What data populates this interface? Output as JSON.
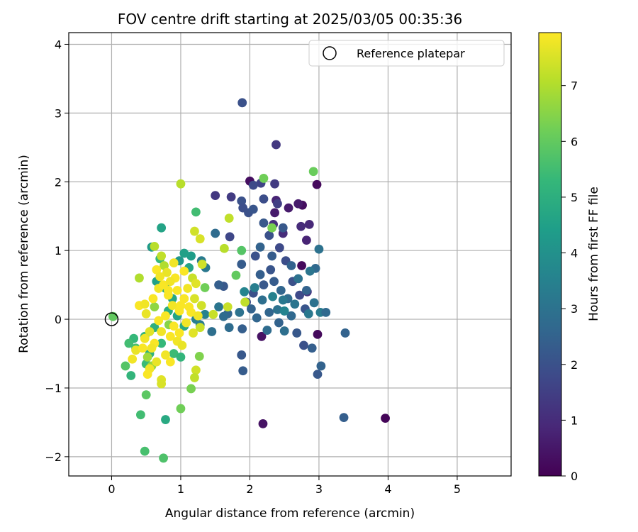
{
  "chart_data": {
    "type": "scatter",
    "title": "FOV centre drift starting at 2025/03/05 00:35:36",
    "xlabel": "Angular distance from reference (arcmin)",
    "ylabel": "Rotation from reference (arcmin)",
    "xlim": [
      -0.62,
      5.78
    ],
    "ylim": [
      -2.28,
      4.17
    ],
    "xticks": [
      0,
      1,
      2,
      3,
      4,
      5
    ],
    "xtick_labels": [
      "0",
      "1",
      "2",
      "3",
      "4",
      "5"
    ],
    "yticks": [
      -2,
      -1,
      0,
      1,
      2,
      3,
      4
    ],
    "ytick_labels": [
      "−2",
      "−1",
      "0",
      "1",
      "2",
      "3",
      "4"
    ],
    "grid": true,
    "legend": {
      "placement": "top-right",
      "entries": [
        {
          "label": "Reference platepar",
          "marker": "open-circle"
        }
      ]
    },
    "reference_point": {
      "x": 0.0,
      "y": 0.0
    },
    "colorbar": {
      "label": "Hours from first FF file",
      "colormap": "viridis",
      "range": [
        0,
        7.95
      ],
      "ticks": [
        0,
        1,
        2,
        3,
        4,
        5,
        6,
        7
      ],
      "tick_labels": [
        "0",
        "1",
        "2",
        "3",
        "4",
        "5",
        "6",
        "7"
      ]
    },
    "colormap_stops": [
      "#440154",
      "#482878",
      "#3e4989",
      "#31688e",
      "#26828e",
      "#1f9e89",
      "#35b779",
      "#6ece58",
      "#b5de2b",
      "#fde725"
    ],
    "points": [
      [
        3.96,
        -1.44,
        0.1
      ],
      [
        2.97,
        1.96,
        0.2
      ],
      [
        2.0,
        2.01,
        0.3
      ],
      [
        2.75,
        0.78,
        0.2
      ],
      [
        2.98,
        -0.22,
        0.2
      ],
      [
        2.17,
        -0.25,
        0.4
      ],
      [
        2.19,
        -1.52,
        0.4
      ],
      [
        2.76,
        1.66,
        0.3
      ],
      [
        2.7,
        1.68,
        0.6
      ],
      [
        2.56,
        1.62,
        0.6
      ],
      [
        2.36,
        1.55,
        0.6
      ],
      [
        2.38,
        1.73,
        0.8
      ],
      [
        2.82,
        1.15,
        0.8
      ],
      [
        2.86,
        1.38,
        0.9
      ],
      [
        2.74,
        1.35,
        1.0
      ],
      [
        2.48,
        1.25,
        1.0
      ],
      [
        2.34,
        1.38,
        1.1
      ],
      [
        2.83,
        0.4,
        1.2
      ],
      [
        2.38,
        2.54,
        1.3
      ],
      [
        2.36,
        1.97,
        1.4
      ],
      [
        2.4,
        1.68,
        1.5
      ],
      [
        2.16,
        1.98,
        1.6
      ],
      [
        1.5,
        1.8,
        1.3
      ],
      [
        1.73,
        1.78,
        1.4
      ],
      [
        1.71,
        1.2,
        1.7
      ],
      [
        1.89,
        3.15,
        2.0
      ],
      [
        2.05,
        1.95,
        1.8
      ],
      [
        2.2,
        1.75,
        1.9
      ],
      [
        1.88,
        1.72,
        2.0
      ],
      [
        1.9,
        1.62,
        1.9
      ],
      [
        1.98,
        1.55,
        2.0
      ],
      [
        2.05,
        1.6,
        2.1
      ],
      [
        2.2,
        1.4,
        2.2
      ],
      [
        2.28,
        1.22,
        2.0
      ],
      [
        2.48,
        1.33,
        2.2
      ],
      [
        2.43,
        1.04,
        1.8
      ],
      [
        2.52,
        0.85,
        1.9
      ],
      [
        2.62,
        0.55,
        2.0
      ],
      [
        2.72,
        0.35,
        1.8
      ],
      [
        2.8,
        0.15,
        2.1
      ],
      [
        2.68,
        -0.2,
        2.2
      ],
      [
        2.78,
        -0.38,
        2.0
      ],
      [
        2.9,
        -0.42,
        2.4
      ],
      [
        2.98,
        -0.8,
        2.2
      ],
      [
        3.03,
        -0.68,
        2.5
      ],
      [
        3.38,
        -0.2,
        2.5
      ],
      [
        3.36,
        -1.43,
        2.4
      ],
      [
        2.3,
        0.72,
        2.1
      ],
      [
        2.2,
        0.5,
        2.2
      ],
      [
        2.05,
        0.38,
        2.0
      ],
      [
        1.95,
        0.25,
        1.9
      ],
      [
        1.88,
        0.8,
        2.3
      ],
      [
        2.08,
        0.92,
        2.0
      ],
      [
        2.15,
        0.65,
        2.4
      ],
      [
        2.35,
        0.55,
        2.3
      ],
      [
        2.45,
        0.42,
        2.6
      ],
      [
        2.55,
        0.3,
        2.8
      ],
      [
        2.6,
        0.05,
        2.7
      ],
      [
        2.42,
        -0.05,
        2.5
      ],
      [
        2.28,
        0.1,
        2.6
      ],
      [
        2.18,
        0.28,
        2.9
      ],
      [
        2.02,
        0.15,
        2.5
      ],
      [
        1.88,
        -0.52,
        2.2
      ],
      [
        1.9,
        -0.75,
        2.3
      ],
      [
        1.89,
        -0.14,
        2.4
      ],
      [
        1.68,
        0.08,
        2.6
      ],
      [
        1.62,
        0.48,
        2.2
      ],
      [
        1.55,
        0.5,
        2.4
      ],
      [
        1.62,
        0.04,
        2.8
      ],
      [
        1.7,
        -0.12,
        2.8
      ],
      [
        1.85,
        0.1,
        3.0
      ],
      [
        2.1,
        0.02,
        2.6
      ],
      [
        2.25,
        -0.16,
        2.8
      ],
      [
        2.4,
        0.14,
        3.0
      ],
      [
        2.5,
        -0.17,
        2.9
      ],
      [
        2.65,
        0.22,
        3.1
      ],
      [
        2.85,
        0.08,
        3.2
      ],
      [
        2.93,
        0.24,
        3.0
      ],
      [
        3.02,
        0.1,
        3.3
      ],
      [
        2.95,
        0.74,
        2.7
      ],
      [
        2.87,
        0.7,
        3.1
      ],
      [
        3.0,
        1.02,
        3.0
      ],
      [
        3.1,
        0.1,
        2.7
      ],
      [
        1.36,
        0.75,
        3.2
      ],
      [
        1.5,
        1.25,
        2.8
      ],
      [
        1.3,
        0.85,
        3.3
      ],
      [
        1.45,
        -0.18,
        2.9
      ],
      [
        1.28,
        -0.08,
        3.3
      ],
      [
        1.22,
        0.0,
        3.4
      ],
      [
        1.35,
        0.07,
        3.5
      ],
      [
        2.07,
        0.46,
        3.4
      ],
      [
        1.92,
        0.4,
        3.6
      ],
      [
        2.33,
        0.33,
        3.5
      ],
      [
        2.48,
        0.28,
        3.2
      ],
      [
        2.7,
        0.59,
        3.0
      ],
      [
        2.5,
        0.12,
        3.6
      ],
      [
        2.82,
        0.42,
        2.5
      ],
      [
        2.6,
        0.78,
        2.5
      ],
      [
        2.15,
        1.05,
        2.5
      ],
      [
        2.32,
        0.92,
        2.3
      ],
      [
        1.55,
        0.18,
        3.1
      ],
      [
        1.15,
        0.92,
        4.4
      ],
      [
        1.12,
        0.75,
        4.6
      ],
      [
        0.98,
        0.85,
        4.2
      ],
      [
        1.05,
        0.96,
        4.5
      ],
      [
        0.72,
        1.33,
        4.6
      ],
      [
        0.58,
        1.05,
        4.3
      ],
      [
        0.65,
        0.55,
        4.5
      ],
      [
        0.78,
        0.45,
        4.8
      ],
      [
        0.88,
        0.3,
        4.7
      ],
      [
        0.82,
        0.12,
        4.9
      ],
      [
        0.95,
        0.05,
        4.6
      ],
      [
        1.05,
        -0.1,
        4.8
      ],
      [
        0.62,
        -0.12,
        5.0
      ],
      [
        0.48,
        -0.25,
        5.2
      ],
      [
        0.55,
        -0.5,
        5.1
      ],
      [
        0.72,
        -0.35,
        5.3
      ],
      [
        0.9,
        -0.5,
        5.4
      ],
      [
        1.0,
        -0.55,
        5.2
      ],
      [
        0.78,
        -1.46,
        4.8
      ],
      [
        0.5,
        -0.65,
        5.4
      ],
      [
        0.28,
        -0.82,
        5.2
      ],
      [
        0.32,
        -0.28,
        5.3
      ],
      [
        0.25,
        -0.35,
        5.5
      ],
      [
        0.35,
        -0.42,
        5.6
      ],
      [
        0.2,
        -0.68,
        5.8
      ],
      [
        0.42,
        -1.39,
        5.5
      ],
      [
        0.48,
        -1.92,
        5.6
      ],
      [
        0.75,
        -2.02,
        5.7
      ],
      [
        0.5,
        -1.1,
        5.9
      ],
      [
        1.22,
        1.56,
        5.5
      ],
      [
        0.7,
        0.88,
        5.3
      ],
      [
        1.88,
        1.0,
        5.8
      ],
      [
        1.8,
        0.64,
        6.0
      ],
      [
        2.2,
        2.05,
        6.2
      ],
      [
        2.92,
        2.15,
        6.1
      ],
      [
        2.32,
        1.33,
        6.3
      ],
      [
        1.0,
        -1.3,
        6.2
      ],
      [
        1.15,
        -1.01,
        6.3
      ],
      [
        1.27,
        -0.54,
        6.4
      ],
      [
        1.35,
        0.46,
        6.2
      ],
      [
        0.02,
        0.04,
        6.0
      ],
      [
        0.83,
        -0.08,
        6.5
      ],
      [
        0.62,
        0.18,
        6.6
      ],
      [
        0.58,
        -0.68,
        6.7
      ],
      [
        0.52,
        -0.55,
        6.8
      ],
      [
        0.4,
        0.6,
        7.0
      ],
      [
        0.62,
        1.06,
        7.1
      ],
      [
        0.72,
        0.92,
        7.2
      ],
      [
        0.76,
        0.78,
        7.0
      ],
      [
        1.0,
        1.97,
        7.1
      ],
      [
        1.7,
        1.47,
        7.2
      ],
      [
        1.63,
        1.03,
        7.1
      ],
      [
        1.93,
        0.25,
        7.2
      ],
      [
        1.68,
        0.18,
        7.3
      ],
      [
        1.47,
        0.07,
        7.3
      ],
      [
        1.2,
        1.28,
        7.4
      ],
      [
        1.28,
        1.17,
        7.5
      ],
      [
        1.31,
        0.8,
        7.4
      ],
      [
        1.17,
        0.6,
        7.3
      ],
      [
        1.22,
        0.52,
        7.6
      ],
      [
        1.2,
        0.3,
        7.5
      ],
      [
        1.3,
        0.2,
        7.4
      ],
      [
        1.28,
        -0.12,
        7.3
      ],
      [
        1.18,
        -0.2,
        7.6
      ],
      [
        1.22,
        -0.74,
        7.4
      ],
      [
        1.2,
        -0.85,
        7.2
      ],
      [
        0.72,
        -0.88,
        7.6
      ],
      [
        0.72,
        -0.94,
        7.5
      ],
      [
        0.65,
        -0.62,
        7.7
      ],
      [
        0.55,
        -0.72,
        7.8
      ],
      [
        0.52,
        -0.8,
        7.9
      ],
      [
        0.3,
        -0.58,
        7.8
      ],
      [
        0.35,
        -0.45,
        7.7
      ],
      [
        0.45,
        -0.42,
        7.9
      ],
      [
        0.48,
        -0.28,
        7.8
      ],
      [
        0.55,
        -0.18,
        7.6
      ],
      [
        0.5,
        0.08,
        7.7
      ],
      [
        0.4,
        0.2,
        7.9
      ],
      [
        0.48,
        0.22,
        7.8
      ],
      [
        0.6,
        0.3,
        7.9
      ],
      [
        0.68,
        0.45,
        7.8
      ],
      [
        0.75,
        0.5,
        7.9
      ],
      [
        0.8,
        0.68,
        7.7
      ],
      [
        0.9,
        0.82,
        7.8
      ],
      [
        0.92,
        0.6,
        7.9
      ],
      [
        0.82,
        0.35,
        7.9
      ],
      [
        0.88,
        0.2,
        7.8
      ],
      [
        0.98,
        0.12,
        7.9
      ],
      [
        1.05,
        0.3,
        7.9
      ],
      [
        1.1,
        0.45,
        7.8
      ],
      [
        0.95,
        0.42,
        7.9
      ],
      [
        0.78,
        0.05,
        7.9
      ],
      [
        0.68,
        -0.02,
        7.9
      ],
      [
        0.72,
        -0.18,
        7.8
      ],
      [
        0.85,
        -0.25,
        7.9
      ],
      [
        0.95,
        -0.32,
        7.8
      ],
      [
        1.02,
        -0.38,
        7.7
      ],
      [
        0.9,
        -0.1,
        7.9
      ],
      [
        0.62,
        -0.35,
        7.9
      ],
      [
        0.58,
        -0.42,
        7.8
      ],
      [
        0.78,
        -0.52,
        7.8
      ],
      [
        0.85,
        -0.62,
        7.9
      ],
      [
        0.98,
        -0.2,
        7.9
      ],
      [
        1.08,
        -0.05,
        7.8
      ],
      [
        1.15,
        0.1,
        7.9
      ],
      [
        1.0,
        0.2,
        7.9
      ],
      [
        0.85,
        0.55,
        7.8
      ],
      [
        0.82,
        0.42,
        7.9
      ],
      [
        1.05,
        0.7,
        7.9
      ],
      [
        1.25,
        0.05,
        7.8
      ],
      [
        1.12,
        0.18,
        7.9
      ],
      [
        0.65,
        0.72,
        7.9
      ],
      [
        0.7,
        0.62,
        7.8
      ]
    ]
  }
}
